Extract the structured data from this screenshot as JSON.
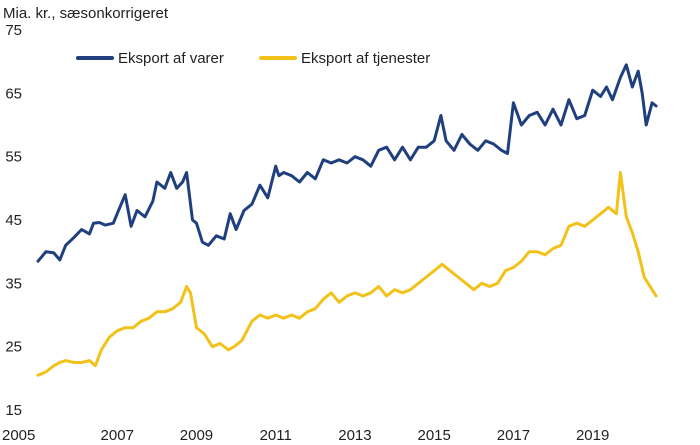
{
  "chart_data": {
    "type": "line",
    "title": "",
    "ylabel": "Mia. kr., sæsonkorrigeret",
    "xlabel": "",
    "ylim": [
      15,
      75
    ],
    "yticks": [
      15,
      25,
      35,
      45,
      55,
      65,
      75
    ],
    "xlim": [
      2005.0,
      2020.75
    ],
    "xticks": [
      2005,
      2007,
      2009,
      2011,
      2013,
      2015,
      2017,
      2019
    ],
    "grid": false,
    "legend_position": "top-left",
    "series": [
      {
        "name": "Eksport af varer",
        "color": "#1f3f7f",
        "x": [
          2005.0,
          2005.2,
          2005.4,
          2005.55,
          2005.7,
          2005.9,
          2006.1,
          2006.3,
          2006.4,
          2006.55,
          2006.7,
          2006.9,
          2007.0,
          2007.2,
          2007.35,
          2007.5,
          2007.7,
          2007.9,
          2008.0,
          2008.2,
          2008.35,
          2008.5,
          2008.65,
          2008.75,
          2008.9,
          2009.0,
          2009.15,
          2009.3,
          2009.5,
          2009.7,
          2009.85,
          2010.0,
          2010.2,
          2010.4,
          2010.6,
          2010.8,
          2011.0,
          2011.08,
          2011.2,
          2011.4,
          2011.6,
          2011.8,
          2012.0,
          2012.2,
          2012.4,
          2012.6,
          2012.8,
          2013.0,
          2013.2,
          2013.4,
          2013.6,
          2013.8,
          2014.0,
          2014.2,
          2014.4,
          2014.6,
          2014.8,
          2015.0,
          2015.17,
          2015.3,
          2015.5,
          2015.7,
          2015.9,
          2016.1,
          2016.3,
          2016.5,
          2016.7,
          2016.85,
          2017.0,
          2017.2,
          2017.4,
          2017.6,
          2017.8,
          2018.0,
          2018.2,
          2018.4,
          2018.6,
          2018.8,
          2019.0,
          2019.2,
          2019.35,
          2019.5,
          2019.7,
          2019.85,
          2020.0,
          2020.15,
          2020.25,
          2020.35,
          2020.5,
          2020.6
        ],
        "values": [
          38.5,
          40.0,
          39.8,
          38.7,
          41.0,
          42.2,
          43.5,
          42.8,
          44.5,
          44.6,
          44.2,
          44.5,
          46.0,
          49.0,
          44.0,
          46.5,
          45.5,
          48.0,
          51.0,
          50.0,
          52.5,
          50.0,
          51.0,
          52.5,
          45.0,
          44.5,
          41.5,
          41.0,
          42.5,
          42.0,
          46.0,
          43.5,
          46.5,
          47.5,
          50.5,
          48.5,
          53.5,
          52.0,
          52.5,
          52.0,
          51.0,
          52.5,
          51.5,
          54.5,
          54.0,
          54.5,
          54.0,
          55.0,
          54.5,
          53.5,
          56.0,
          56.5,
          54.5,
          56.5,
          54.5,
          56.5,
          56.5,
          57.5,
          61.5,
          57.5,
          56.0,
          58.5,
          57.0,
          56.0,
          57.5,
          57.0,
          56.0,
          55.5,
          63.5,
          60.0,
          61.5,
          62.0,
          60.0,
          62.5,
          60.0,
          64.0,
          61.0,
          61.5,
          65.5,
          64.5,
          66.0,
          64.0,
          67.5,
          69.5,
          66.0,
          68.5,
          65.0,
          60.0,
          63.5,
          63.0
        ]
      },
      {
        "name": "Eksport af tjenester",
        "color": "#f2c21a",
        "x": [
          2005.0,
          2005.2,
          2005.4,
          2005.55,
          2005.7,
          2005.9,
          2006.1,
          2006.3,
          2006.45,
          2006.6,
          2006.8,
          2007.0,
          2007.2,
          2007.4,
          2007.6,
          2007.8,
          2008.0,
          2008.2,
          2008.4,
          2008.6,
          2008.75,
          2008.85,
          2009.0,
          2009.2,
          2009.4,
          2009.6,
          2009.8,
          2009.95,
          2010.15,
          2010.4,
          2010.6,
          2010.8,
          2011.0,
          2011.2,
          2011.4,
          2011.6,
          2011.8,
          2012.0,
          2012.2,
          2012.4,
          2012.6,
          2012.8,
          2013.0,
          2013.2,
          2013.4,
          2013.6,
          2013.8,
          2014.0,
          2014.2,
          2014.4,
          2014.6,
          2014.8,
          2015.0,
          2015.2,
          2015.4,
          2015.6,
          2015.8,
          2016.0,
          2016.2,
          2016.4,
          2016.6,
          2016.8,
          2017.0,
          2017.2,
          2017.4,
          2017.6,
          2017.8,
          2018.0,
          2018.2,
          2018.4,
          2018.6,
          2018.8,
          2019.0,
          2019.2,
          2019.4,
          2019.6,
          2019.7,
          2019.85,
          2020.0,
          2020.15,
          2020.3,
          2020.5,
          2020.6
        ],
        "values": [
          20.5,
          21.0,
          22.0,
          22.5,
          22.8,
          22.5,
          22.5,
          22.8,
          22.0,
          24.5,
          26.5,
          27.5,
          28.0,
          28.0,
          29.0,
          29.5,
          30.5,
          30.5,
          31.0,
          32.0,
          34.5,
          33.5,
          28.0,
          27.0,
          25.0,
          25.5,
          24.5,
          25.0,
          26.0,
          29.0,
          30.0,
          29.5,
          30.0,
          29.5,
          30.0,
          29.5,
          30.5,
          31.0,
          32.5,
          33.5,
          32.0,
          33.0,
          33.5,
          33.0,
          33.5,
          34.5,
          33.0,
          34.0,
          33.5,
          34.0,
          35.0,
          36.0,
          37.0,
          38.0,
          37.0,
          36.0,
          35.0,
          34.0,
          35.0,
          34.5,
          35.0,
          37.0,
          37.5,
          38.5,
          40.0,
          40.0,
          39.5,
          40.5,
          41.0,
          44.0,
          44.5,
          44.0,
          45.0,
          46.0,
          47.0,
          46.0,
          52.5,
          45.5,
          43.0,
          40.0,
          36.0,
          34.0,
          33.0
        ]
      }
    ]
  }
}
